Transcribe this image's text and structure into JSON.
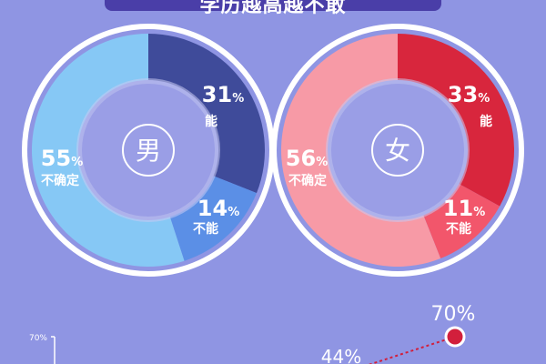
{
  "header": {
    "title": "学历越高越不敢"
  },
  "chart_data": [
    {
      "type": "pie",
      "variant": "donut",
      "center_label": "男",
      "slices": [
        {
          "pct": "31",
          "label": "能",
          "value": 31,
          "color": "#3f4b9a"
        },
        {
          "pct": "14",
          "label": "不能",
          "value": 14,
          "color": "#5b8fe6"
        },
        {
          "pct": "55",
          "label": "不确定",
          "value": 55,
          "color": "#86c8f5"
        }
      ]
    },
    {
      "type": "pie",
      "variant": "donut",
      "center_label": "女",
      "slices": [
        {
          "pct": "33",
          "label": "能",
          "value": 33,
          "color": "#d8263d"
        },
        {
          "pct": "11",
          "label": "不能",
          "value": 11,
          "color": "#f2566b"
        },
        {
          "pct": "56",
          "label": "不确定",
          "value": 56,
          "color": "#f79aa6"
        }
      ]
    },
    {
      "type": "line",
      "y_axis_top_label": "70%",
      "points": [
        {
          "label": "44%",
          "value": 44
        },
        {
          "label": "70%",
          "value": 70
        }
      ],
      "ylim": [
        0,
        70
      ],
      "color": "#d21f3c"
    }
  ]
}
